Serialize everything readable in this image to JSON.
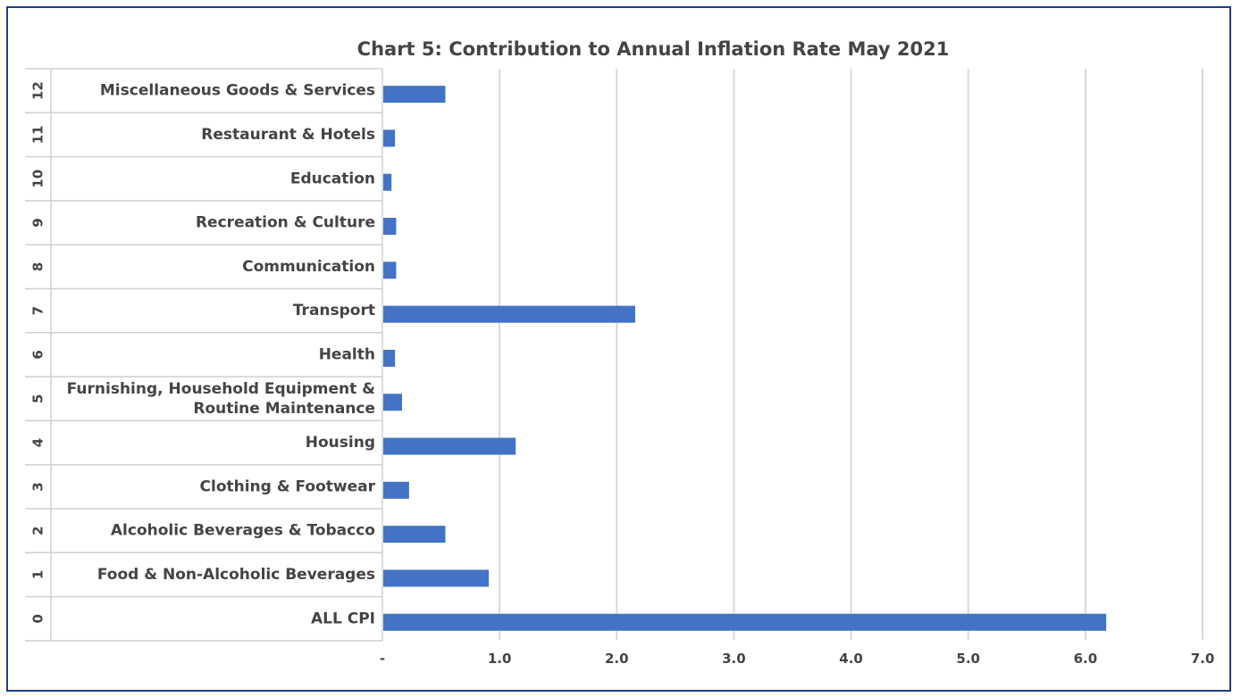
{
  "chart_data": {
    "type": "bar",
    "orientation": "horizontal",
    "title": "Chart 5: Contribution to Annual  Inflation Rate May 2021",
    "xlabel": "",
    "ylabel": "",
    "xlim": [
      0,
      7
    ],
    "x_ticks": [
      "-",
      "1.0",
      "2.0",
      "3.0",
      "4.0",
      "5.0",
      "6.0",
      "7.0"
    ],
    "grid": "vertical",
    "legend": "none",
    "bar_color": "#4472c4",
    "categories": [
      {
        "num": "12",
        "label_lines": [
          "Miscellaneous Goods & Services"
        ],
        "value": 0.53
      },
      {
        "num": "11",
        "label_lines": [
          "Restaurant & Hotels"
        ],
        "value": 0.1
      },
      {
        "num": "10",
        "label_lines": [
          "Education"
        ],
        "value": 0.07
      },
      {
        "num": "9",
        "label_lines": [
          "Recreation & Culture"
        ],
        "value": 0.11
      },
      {
        "num": "8",
        "label_lines": [
          "Communication"
        ],
        "value": 0.11
      },
      {
        "num": "7",
        "label_lines": [
          "Transport"
        ],
        "value": 2.15
      },
      {
        "num": "6",
        "label_lines": [
          "Health"
        ],
        "value": 0.1
      },
      {
        "num": "5",
        "label_lines": [
          "Furnishing, Household Equipment &",
          "Routine Maintenance"
        ],
        "value": 0.16
      },
      {
        "num": "4",
        "label_lines": [
          "Housing"
        ],
        "value": 1.13
      },
      {
        "num": "3",
        "label_lines": [
          "Clothing & Footwear"
        ],
        "value": 0.22
      },
      {
        "num": "2",
        "label_lines": [
          "Alcoholic Beverages & Tobacco"
        ],
        "value": 0.53
      },
      {
        "num": "1",
        "label_lines": [
          "Food & Non-Alcoholic Beverages"
        ],
        "value": 0.9
      },
      {
        "num": "0",
        "label_lines": [
          "ALL CPI"
        ],
        "value": 6.17
      }
    ]
  }
}
